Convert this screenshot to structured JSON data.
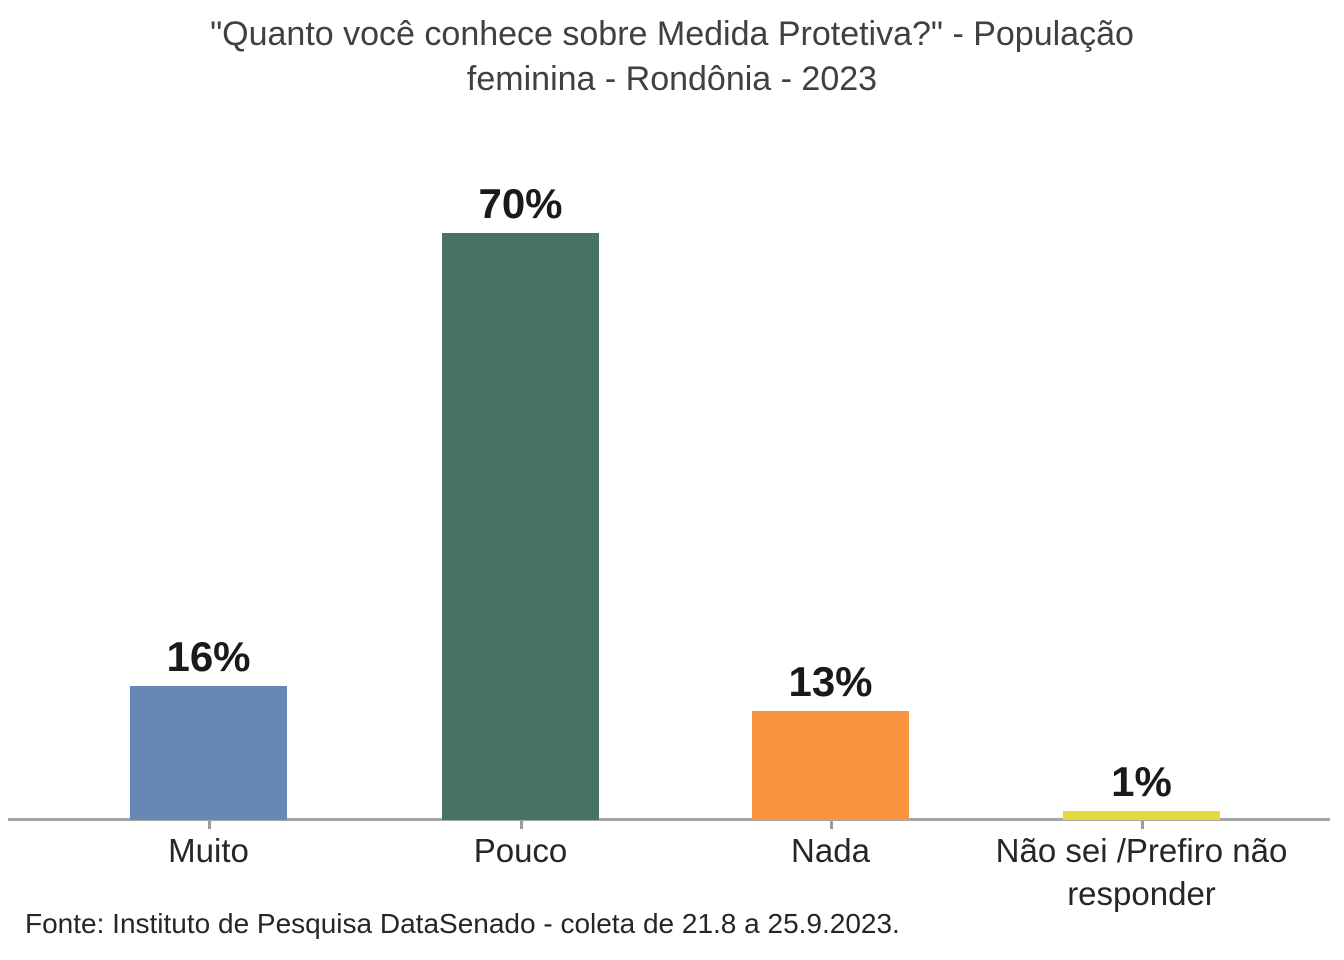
{
  "title": {
    "text": "\"Quanto você conhece sobre Medida Protetiva?\" - População feminina - Rondônia - 2023",
    "lines": [
      "\"Quanto você conhece sobre Medida Protetiva?\" - População",
      "feminina - Rondônia - 2023"
    ]
  },
  "footer": {
    "source": "Fonte: Instituto de Pesquisa DataSenado - coleta de 21.8 a 25.9.2023."
  },
  "colors": {
    "background": "#ffffff",
    "title_text": "#404040",
    "category_text": "#262626",
    "value_text": "#1a1a1a",
    "axis_line": "#a6a6a6"
  },
  "chart_data": {
    "type": "bar",
    "title": "\"Quanto você conhece sobre Medida Protetiva?\" - População feminina - Rondônia - 2023",
    "categories": [
      "Muito",
      "Pouco",
      "Nada",
      "Não sei /Prefiro não responder"
    ],
    "values": [
      16,
      70,
      13,
      1
    ],
    "value_labels": [
      "16%",
      "70%",
      "13%",
      "1%"
    ],
    "bar_colors": [
      "#6588b4",
      "#477363",
      "#f89440",
      "#e3d83c"
    ],
    "xlabel": "",
    "ylabel": "",
    "ylim": [
      0,
      75
    ],
    "grid": false,
    "legend": false,
    "data_labels_position": "above-bar",
    "source": "Fonte: Instituto de Pesquisa DataSenado - coleta de 21.8 a 25.9.2023."
  }
}
